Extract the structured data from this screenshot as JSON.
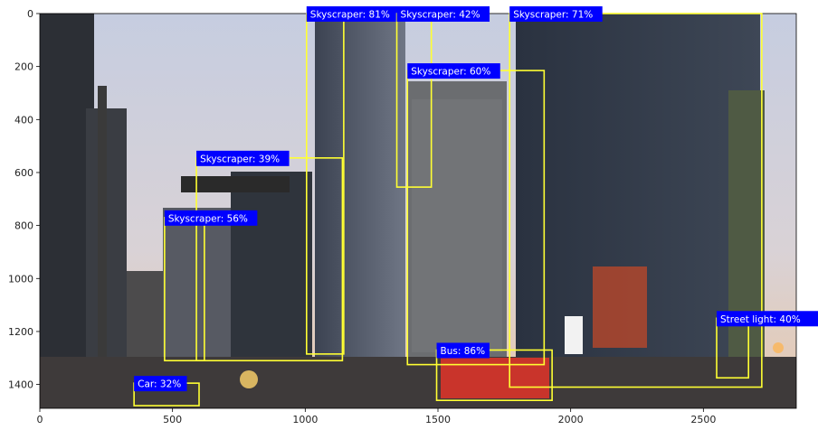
{
  "image": {
    "description_colors": {
      "box": "#ffff33",
      "label_bg": "#0000ff",
      "label_text": "#ffffff"
    }
  },
  "axes": {
    "x_ticks": [
      "0",
      "500",
      "1000",
      "1500",
      "2000",
      "2500"
    ],
    "y_ticks": [
      "0",
      "200",
      "400",
      "600",
      "800",
      "1000",
      "1200",
      "1400"
    ],
    "x_range": [
      0,
      2850
    ],
    "y_range": [
      1490,
      0
    ]
  },
  "detections": [
    {
      "label": "Skyscraper: 81%",
      "x0": 1005,
      "y0": 0,
      "x1": 1145,
      "y1": 1285
    },
    {
      "label": "Skyscraper: 42%",
      "x0": 1345,
      "y0": 0,
      "x1": 1475,
      "y1": 655
    },
    {
      "label": "Skyscraper: 71%",
      "x0": 1770,
      "y0": 0,
      "x1": 2720,
      "y1": 1410
    },
    {
      "label": "Skyscraper: 60%",
      "x0": 1385,
      "y0": 215,
      "x1": 1900,
      "y1": 1325
    },
    {
      "label": "Skyscraper: 39%",
      "x0": 590,
      "y0": 545,
      "x1": 1140,
      "y1": 1310
    },
    {
      "label": "Skyscraper: 56%",
      "x0": 470,
      "y0": 770,
      "x1": 620,
      "y1": 1310
    },
    {
      "label": "Street light: 40%",
      "x0": 2550,
      "y0": 1150,
      "x1": 2670,
      "y1": 1375
    },
    {
      "label": "Bus: 86%",
      "x0": 1495,
      "y0": 1270,
      "x1": 1930,
      "y1": 1460
    },
    {
      "label": "Car: 32%",
      "x0": 355,
      "y0": 1395,
      "x1": 600,
      "y1": 1480
    }
  ]
}
